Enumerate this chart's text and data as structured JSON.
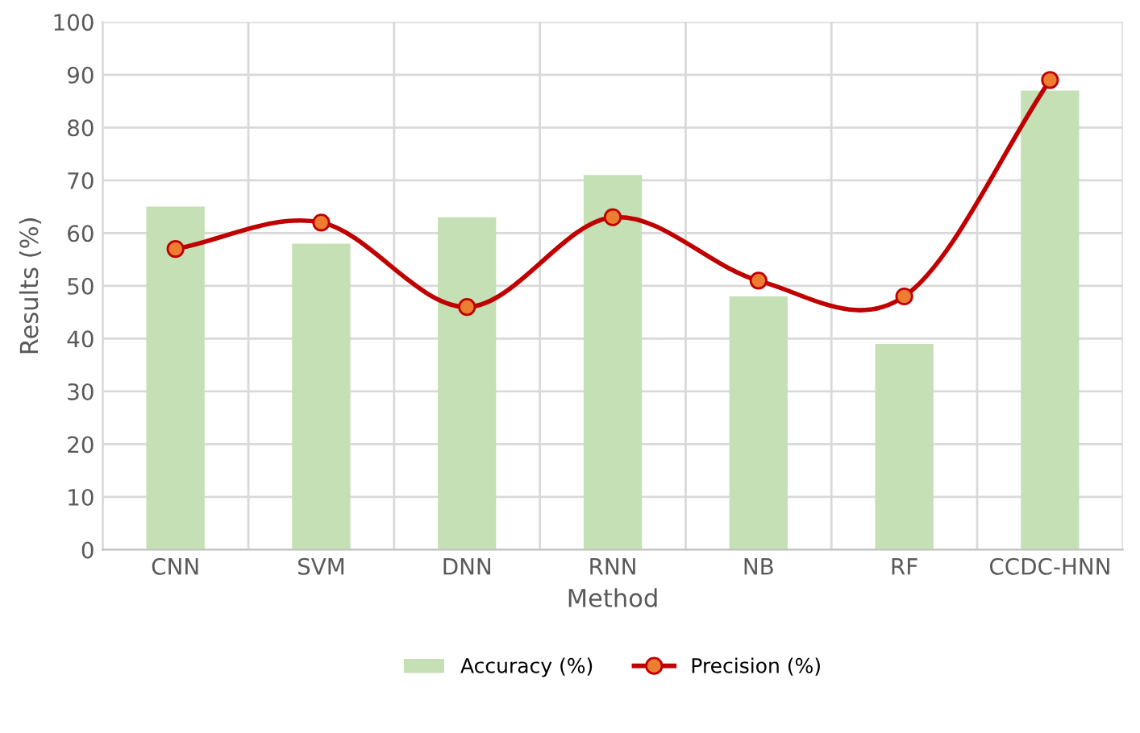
{
  "chart_data": {
    "type": "bar",
    "xlabel": "Method",
    "ylabel": "Results (%)",
    "categories": [
      "CNN",
      "SVM",
      "DNN",
      "RNN",
      "NB",
      "RF",
      "CCDC-HNN"
    ],
    "series": [
      {
        "name": "Accuracy (%)",
        "color": "#c5e0b4",
        "values": [
          65,
          58,
          63,
          71,
          48,
          39,
          87
        ]
      },
      {
        "name": "Precision (%)",
        "type": "line",
        "color": "#c00000",
        "marker": "circle",
        "values": [
          57,
          62,
          46,
          63,
          51,
          48,
          89
        ]
      }
    ],
    "ylim": [
      0,
      100
    ],
    "yticks": [
      0,
      10,
      20,
      30,
      40,
      50,
      60,
      70,
      80,
      90,
      100
    ],
    "grid": true,
    "legend": "bottom"
  }
}
